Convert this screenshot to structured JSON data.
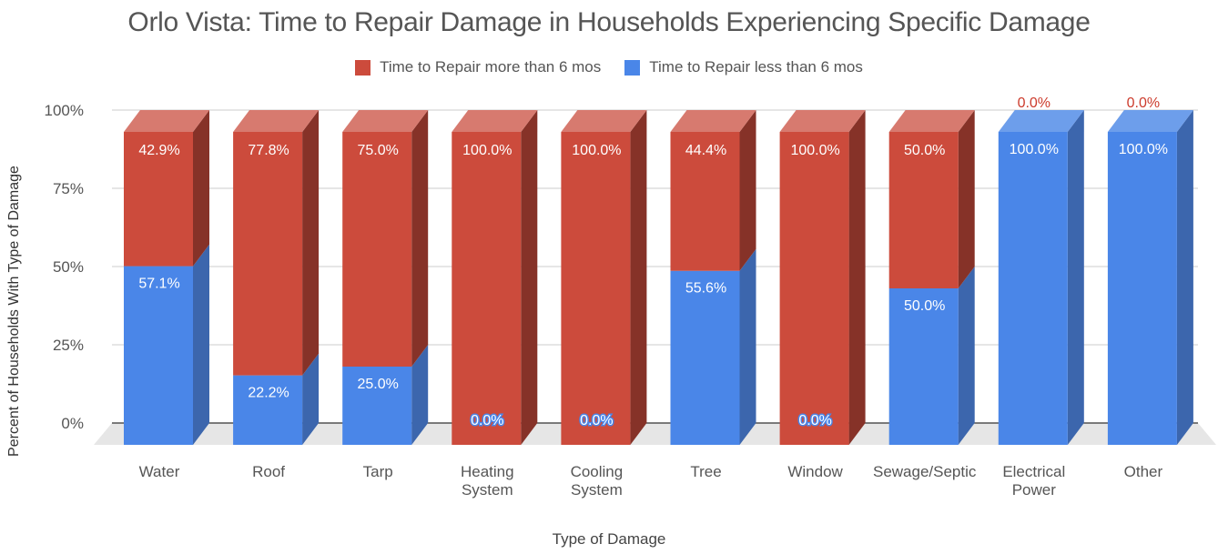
{
  "title": "Orlo Vista: Time to Repair Damage in Households Experiencing Specific Damage",
  "legend": [
    {
      "label": "Time to Repair more than 6 mos",
      "color": "#cc4b3c"
    },
    {
      "label": "Time to Repair less than 6 mos",
      "color": "#4a86e8"
    }
  ],
  "chart_data": {
    "type": "bar",
    "stacked": true,
    "percent": true,
    "categories": [
      "Water",
      "Roof",
      "Tarp",
      "Heating System",
      "Cooling System",
      "Tree",
      "Window",
      "Sewage/Septic",
      "Electrical Power",
      "Other"
    ],
    "category_lines": [
      [
        "Water"
      ],
      [
        "Roof"
      ],
      [
        "Tarp"
      ],
      [
        "Heating",
        "System"
      ],
      [
        "Cooling",
        "System"
      ],
      [
        "Tree"
      ],
      [
        "Window"
      ],
      [
        "Sewage/Septic"
      ],
      [
        "Electrical",
        "Power"
      ],
      [
        "Other"
      ]
    ],
    "series": [
      {
        "name": "Time to Repair less than 6 mos",
        "values": [
          57.1,
          22.2,
          25.0,
          0.0,
          0.0,
          55.6,
          0.0,
          50.0,
          100.0,
          100.0
        ],
        "labels": [
          "57.1%",
          "22.2%",
          "25.0%",
          "0.0%",
          "0.0%",
          "55.6%",
          "0.0%",
          "50.0%",
          "100.0%",
          "100.0%"
        ],
        "color": "#4a86e8",
        "side_color": "#3c66ad",
        "top_color": "#6d9eeb"
      },
      {
        "name": "Time to Repair more than 6 mos",
        "values": [
          42.9,
          77.8,
          75.0,
          100.0,
          100.0,
          44.4,
          100.0,
          50.0,
          0.0,
          0.0
        ],
        "labels": [
          "42.9%",
          "77.8%",
          "75.0%",
          "100.0%",
          "100.0%",
          "44.4%",
          "100.0%",
          "50.0%",
          "0.0%",
          "0.0%"
        ],
        "color": "#cc4b3c",
        "side_color": "#863228",
        "top_color": "#d77a6f"
      }
    ],
    "y_ticks": [
      "0%",
      "25%",
      "50%",
      "75%",
      "100%"
    ],
    "ylim": [
      0,
      100
    ],
    "xlabel": "Type of Damage",
    "ylabel": "Percent of Households With Type of Damage",
    "grid": true,
    "legend_position": "top"
  }
}
